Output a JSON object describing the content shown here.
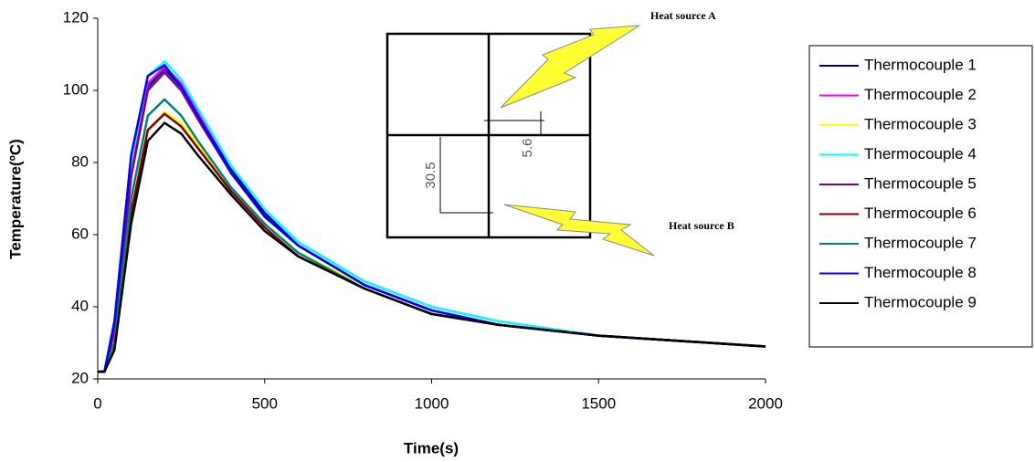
{
  "chart_data": {
    "type": "line",
    "x_label": "Time(s)",
    "y_label": "Temperature(ºC)",
    "annotations": [
      "Heat source A",
      "Heat source B",
      "30.5",
      "5.6"
    ],
    "x": [
      0,
      20,
      50,
      100,
      150,
      200,
      250,
      300,
      400,
      500,
      600,
      800,
      1000,
      1200,
      1500,
      2000
    ],
    "series": [
      {
        "name": "Thermocouple 1",
        "color": "#000080",
        "values": [
          22,
          22,
          34,
          78,
          101,
          106,
          101,
          93,
          78,
          66,
          57,
          46,
          39,
          35,
          32,
          29
        ]
      },
      {
        "name": "Thermocouple 2",
        "color": "#ff00ff",
        "values": [
          22,
          22,
          34,
          78,
          102,
          106.5,
          102,
          94,
          79,
          67,
          58,
          47,
          40,
          36,
          32,
          29
        ]
      },
      {
        "name": "Thermocouple 3",
        "color": "#ffff00",
        "values": [
          22,
          22,
          29,
          66,
          89,
          94,
          91,
          85,
          73,
          63,
          55,
          46,
          39,
          35,
          32,
          29
        ]
      },
      {
        "name": "Thermocouple 4",
        "color": "#00ffff",
        "values": [
          22,
          22,
          35,
          80,
          104,
          108,
          103,
          95,
          79,
          67,
          58,
          47,
          40,
          36,
          32,
          29
        ]
      },
      {
        "name": "Thermocouple 5",
        "color": "#800080",
        "values": [
          22,
          22,
          33,
          76,
          100,
          105,
          100,
          92,
          77,
          65,
          57,
          46,
          39,
          35,
          32,
          29
        ]
      },
      {
        "name": "Thermocouple 6",
        "color": "#800000",
        "values": [
          22,
          22,
          29,
          66,
          89,
          93.5,
          90,
          84,
          72,
          62,
          54,
          45,
          38,
          35,
          32,
          29
        ]
      },
      {
        "name": "Thermocouple 7",
        "color": "#008080",
        "values": [
          22,
          22,
          30,
          70,
          93,
          97.5,
          93,
          86,
          73,
          63,
          55,
          45,
          38,
          35,
          32,
          29
        ]
      },
      {
        "name": "Thermocouple 8",
        "color": "#0000ff",
        "values": [
          22,
          22,
          36,
          82,
          104,
          107,
          101,
          93,
          77,
          65,
          57,
          46,
          39,
          35,
          32,
          29
        ]
      },
      {
        "name": "Thermocouple 9",
        "color": "#000000",
        "values": [
          22,
          22,
          28,
          63,
          86,
          91,
          88,
          82,
          71,
          61,
          54,
          45,
          38,
          35,
          32,
          29
        ]
      }
    ],
    "xlim": [
      0,
      2000
    ],
    "xticks": [
      0,
      500,
      1000,
      1500,
      2000
    ],
    "ylim": [
      20,
      120
    ],
    "yticks": [
      20,
      40,
      60,
      80,
      100,
      120
    ],
    "grid": false,
    "legend": "right"
  }
}
